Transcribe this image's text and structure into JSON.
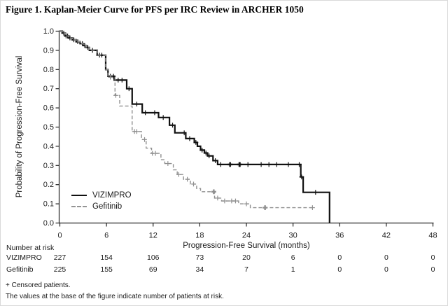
{
  "chart_data": {
    "type": "line",
    "subtype": "kaplan-meier-step",
    "title": "Figure 1. Kaplan-Meier Curve for PFS per IRC Review in ARCHER 1050",
    "xlabel": "Progression-Free Survival (months)",
    "ylabel": "Probability of Progression-Free Survival",
    "xlim": [
      0,
      48
    ],
    "ylim": [
      0.0,
      1.0
    ],
    "xticks": [
      0,
      6,
      12,
      18,
      24,
      30,
      36,
      42,
      48
    ],
    "yticks": [
      0.0,
      0.1,
      0.2,
      0.3,
      0.4,
      0.5,
      0.6,
      0.7,
      0.8,
      0.9,
      1.0
    ],
    "grid": false,
    "legend_position": "lower-left-inside",
    "series": [
      {
        "name": "VIZIMPRO",
        "line_style": "solid",
        "color": "#111111",
        "points": [
          [
            0,
            1.0
          ],
          [
            0.3,
            0.99
          ],
          [
            0.7,
            0.975
          ],
          [
            1.1,
            0.965
          ],
          [
            1.6,
            0.955
          ],
          [
            2.1,
            0.945
          ],
          [
            2.6,
            0.935
          ],
          [
            3.0,
            0.925
          ],
          [
            3.4,
            0.915
          ],
          [
            3.8,
            0.9
          ],
          [
            4.8,
            0.875
          ],
          [
            5.9,
            0.8
          ],
          [
            6.2,
            0.765
          ],
          [
            7.0,
            0.745
          ],
          [
            8.6,
            0.7
          ],
          [
            9.3,
            0.62
          ],
          [
            10.6,
            0.575
          ],
          [
            12.7,
            0.55
          ],
          [
            14.1,
            0.51
          ],
          [
            14.8,
            0.47
          ],
          [
            16.2,
            0.44
          ],
          [
            17.3,
            0.42
          ],
          [
            17.7,
            0.4
          ],
          [
            18.1,
            0.38
          ],
          [
            18.6,
            0.365
          ],
          [
            19.0,
            0.35
          ],
          [
            19.7,
            0.325
          ],
          [
            20.3,
            0.305
          ],
          [
            31.0,
            0.24
          ],
          [
            31.3,
            0.16
          ],
          [
            34.7,
            0.0
          ]
        ],
        "censor_times": [
          0.5,
          0.8,
          1.0,
          1.3,
          1.8,
          2.3,
          2.9,
          3.2,
          3.6,
          4.2,
          5.1,
          5.4,
          6.5,
          6.9,
          7.5,
          8.0,
          8.9,
          9.9,
          11.0,
          12.2,
          13.3,
          14.5,
          16.0,
          16.7,
          17.5,
          18.3,
          18.8,
          19.2,
          20.0,
          20.7,
          23.2,
          24.2,
          25.9,
          26.9,
          27.9,
          29.4,
          30.8,
          31.1,
          32.9
        ],
        "censor_times_bold": [
          21.9,
          23.1
        ]
      },
      {
        "name": "Gefitinib",
        "line_style": "dashed",
        "color": "#909090",
        "points": [
          [
            0,
            1.0
          ],
          [
            0.3,
            0.99
          ],
          [
            0.7,
            0.975
          ],
          [
            1.1,
            0.965
          ],
          [
            1.6,
            0.955
          ],
          [
            2.1,
            0.945
          ],
          [
            2.6,
            0.935
          ],
          [
            3.0,
            0.925
          ],
          [
            3.4,
            0.915
          ],
          [
            3.8,
            0.9
          ],
          [
            4.8,
            0.875
          ],
          [
            5.9,
            0.8
          ],
          [
            6.2,
            0.76
          ],
          [
            7.1,
            0.665
          ],
          [
            7.7,
            0.61
          ],
          [
            9.3,
            0.477
          ],
          [
            10.5,
            0.435
          ],
          [
            11.1,
            0.39
          ],
          [
            11.8,
            0.363
          ],
          [
            13.0,
            0.33
          ],
          [
            13.5,
            0.31
          ],
          [
            14.6,
            0.277
          ],
          [
            15.1,
            0.253
          ],
          [
            15.9,
            0.228
          ],
          [
            16.8,
            0.203
          ],
          [
            17.6,
            0.18
          ],
          [
            18.1,
            0.163
          ],
          [
            19.9,
            0.13
          ],
          [
            20.8,
            0.115
          ],
          [
            23.0,
            0.1
          ],
          [
            24.5,
            0.08
          ],
          [
            32.8,
            0.08
          ]
        ],
        "censor_times": [
          6.5,
          7.2,
          9.6,
          9.9,
          10.9,
          11.9,
          12.3,
          13.9,
          15.3,
          16.4,
          17.2,
          20.3,
          21.2,
          22.1,
          22.6,
          24.0,
          32.5
        ],
        "censor_times_bold": [
          19.8,
          26.4
        ]
      }
    ],
    "risk_table": {
      "label": "Number at risk",
      "times": [
        0,
        6,
        12,
        18,
        24,
        30,
        36,
        42,
        48
      ],
      "rows": [
        {
          "name": "VIZIMPRO",
          "values": [
            227,
            154,
            106,
            73,
            20,
            6,
            0,
            0,
            0
          ]
        },
        {
          "name": "Gefitinib",
          "values": [
            225,
            155,
            69,
            34,
            7,
            1,
            0,
            0,
            0
          ]
        }
      ]
    },
    "footnotes": [
      "+ Censored patients.",
      "The values at the base of the figure indicate number of patients at risk."
    ]
  }
}
